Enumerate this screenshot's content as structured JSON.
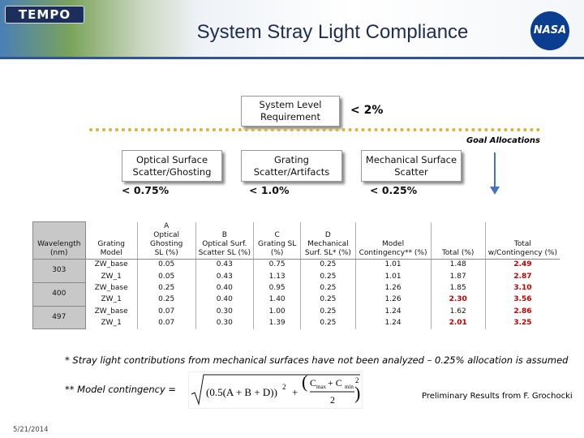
{
  "header": {
    "logo": "TEMPO",
    "title": "System Stray Light Compliance",
    "agency": "NASA"
  },
  "requirement": {
    "label": "System Level Requirement",
    "value": "< 2%"
  },
  "goal_label": "Goal Allocations",
  "allocations": [
    {
      "label": "Optical Surface Scatter/Ghosting",
      "value": "< 0.75%"
    },
    {
      "label": "Grating Scatter/Artifacts",
      "value": "< 1.0%"
    },
    {
      "label": "Mechanical Surface Scatter",
      "value": "< 0.25%"
    }
  ],
  "table": {
    "alert_color": "#c00000",
    "header": [
      {
        "lines": [
          "Wavelength",
          "(nm)"
        ]
      },
      {
        "lines": [
          "Grating",
          "Model"
        ]
      },
      {
        "letter": "A",
        "lines": [
          "Optical Ghosting",
          "SL (%)"
        ]
      },
      {
        "letter": "B",
        "lines": [
          "Optical Surf.",
          "Scatter SL (%)"
        ]
      },
      {
        "letter": "C",
        "lines": [
          "Grating SL",
          "(%)"
        ]
      },
      {
        "letter": "D",
        "lines": [
          "Mechanical",
          "Surf. SL* (%)"
        ]
      },
      {
        "lines": [
          "Model",
          "Contingency** (%)"
        ]
      },
      {
        "lines": [
          "Total (%)"
        ]
      },
      {
        "lines": [
          "Total",
          "w/Contingency (%)"
        ]
      }
    ],
    "groups": [
      {
        "wavelength": "303",
        "rows": [
          [
            "ZW_base",
            "0.05",
            "0.43",
            "0.75",
            "0.25",
            "1.01",
            "1.48",
            {
              "text": "2.49",
              "alert": true
            }
          ],
          [
            "ZW_1",
            "0.05",
            "0.43",
            "1.13",
            "0.25",
            "1.01",
            "1.87",
            {
              "text": "2.87",
              "alert": true
            }
          ]
        ]
      },
      {
        "wavelength": "400",
        "rows": [
          [
            "ZW_base",
            "0.25",
            "0.40",
            "0.95",
            "0.25",
            "1.26",
            "1.85",
            {
              "text": "3.10",
              "alert": true
            }
          ],
          [
            "ZW_1",
            "0.25",
            "0.40",
            "1.40",
            "0.25",
            "1.26",
            {
              "text": "2.30",
              "alert": true
            },
            {
              "text": "3.56",
              "alert": true
            }
          ]
        ]
      },
      {
        "wavelength": "497",
        "rows": [
          [
            "ZW_base",
            "0.07",
            "0.30",
            "1.00",
            "0.25",
            "1.24",
            "1.62",
            {
              "text": "2.86",
              "alert": true
            }
          ],
          [
            "ZW_1",
            "0.07",
            "0.30",
            "1.39",
            "0.25",
            "1.24",
            {
              "text": "2.01",
              "alert": true
            },
            {
              "text": "3.25",
              "alert": true
            }
          ]
        ]
      }
    ]
  },
  "footnotes": {
    "mechanical": "* Stray light contributions from mechanical surfaces have not been analyzed – 0.25% allocation is assumed",
    "contingency": "** Model contingency =",
    "formula": {
      "first": "(0.5(A + B + D))",
      "power": "2",
      "plus": "+",
      "c1": "C",
      "sub1": "max",
      "mid": "+ C",
      "sub2": "min",
      "denominator": "2"
    }
  },
  "credit": "Preliminary Results from F. Grochocki",
  "date": "5/21/2014"
}
